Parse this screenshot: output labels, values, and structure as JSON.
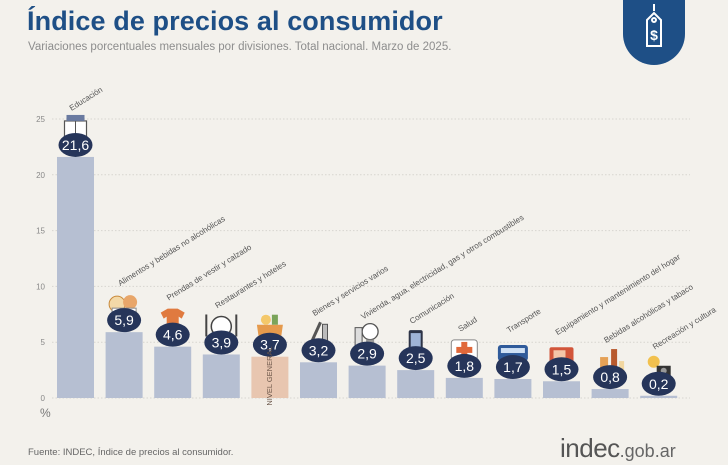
{
  "header": {
    "title": "Índice de precios al consumidor",
    "subtitle": "Variaciones porcentuales mensuales por divisiones. Total nacional. Marzo de 2025."
  },
  "footer": {
    "source": "Fuente: INDEC, Índice de precios al consumidor.",
    "brand": "indec",
    "brand_suffix": ".gob.ar"
  },
  "colors": {
    "title": "#1e4f86",
    "bar": "#b6bfd2",
    "bar_highlight": "#e8c6b0",
    "badge": "#26355a",
    "background": "#f3f1ec"
  },
  "chart_data": {
    "type": "bar",
    "y_unit_label": "%",
    "ylim": [
      0,
      25
    ],
    "y_ticks": [
      "0",
      "5",
      "10",
      "15",
      "20",
      "25"
    ],
    "grid": true,
    "categories": [
      "Educación",
      "Alimentos y bebidas no alcohólicas",
      "Prendas de vestir y calzado",
      "Restaurantes y hoteles",
      "NIVEL GENERAL",
      "Bienes y servicios varios",
      "Vivienda, agua, electricidad, gas y otros combustibles",
      "Comunicación",
      "Salud",
      "Transporte",
      "Equipamiento y mantenimiento del hogar",
      "Bebidas alcohólicas y tabaco",
      "Recreación y cultura"
    ],
    "value_labels": [
      "21,6",
      "5,9",
      "4,6",
      "3,9",
      "3,7",
      "3,2",
      "2,9",
      "2,5",
      "1,8",
      "1,7",
      "1,5",
      "0,8",
      "0,2"
    ],
    "values": [
      21.6,
      5.9,
      4.6,
      3.9,
      3.7,
      3.2,
      2.9,
      2.5,
      1.8,
      1.7,
      1.5,
      0.8,
      0.2
    ],
    "highlight_index": 4,
    "category_icons": [
      "book-icon",
      "food-icon",
      "clothing-icon",
      "cutlery-icon",
      "shopping-bag-icon",
      "tools-icon",
      "lightbulb-icon",
      "phone-icon",
      "health-cross-icon",
      "bus-icon",
      "appliance-icon",
      "bottle-icon",
      "recreation-icon"
    ]
  }
}
